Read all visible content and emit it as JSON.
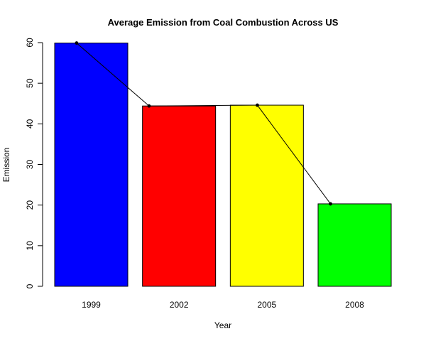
{
  "chart_data": {
    "type": "bar",
    "title": "Average Emission from Coal Combustion Across US",
    "xlabel": "Year",
    "ylabel": "Emission",
    "categories": [
      "1999",
      "2002",
      "2005",
      "2008"
    ],
    "values": [
      59.9,
      44.4,
      44.6,
      20.3
    ],
    "bar_colors": [
      "#0000ff",
      "#ff0000",
      "#ffff00",
      "#00ff00"
    ],
    "overlay": "line-with-points",
    "ylim": [
      0,
      60
    ],
    "yticks": [
      0,
      10,
      20,
      30,
      40,
      50,
      60
    ],
    "grid": false,
    "legend": "none"
  }
}
